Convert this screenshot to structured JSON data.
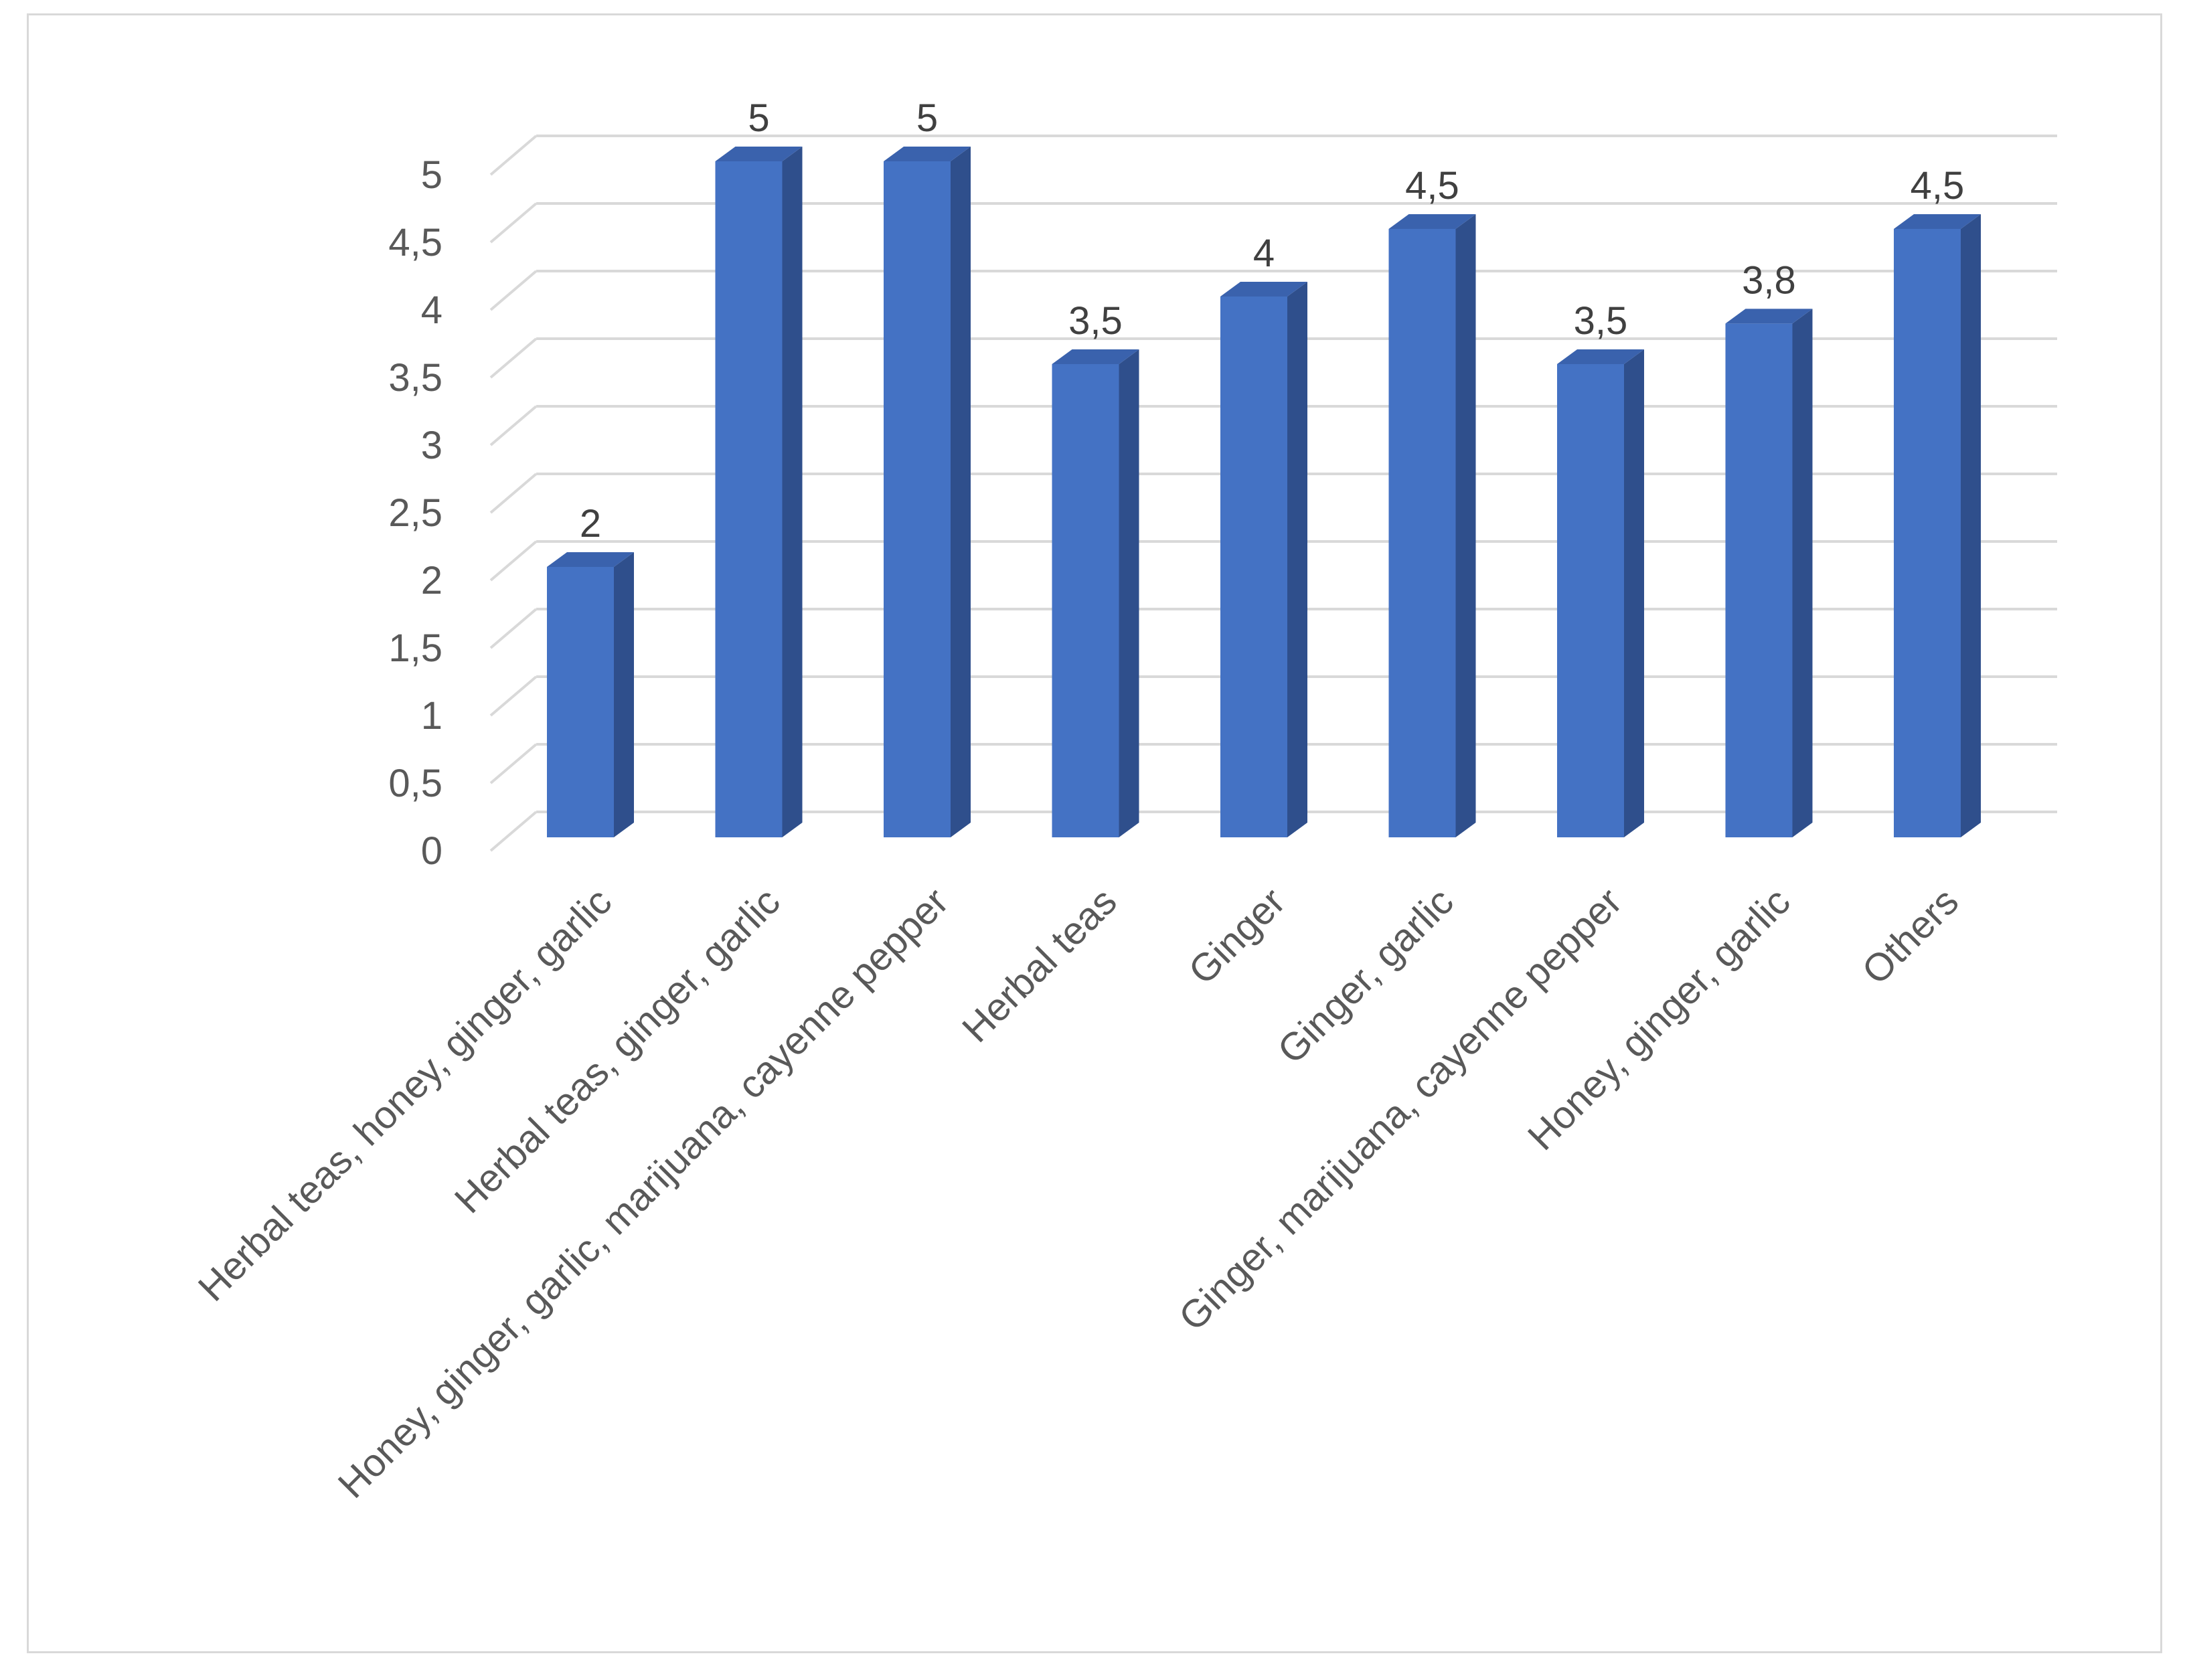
{
  "chart_data": {
    "type": "bar",
    "style": "3d-column",
    "categories": [
      "Herbal teas, honey, ginger, garlic",
      "Herbal teas, ginger, garlic",
      "Honey, ginger, garlic, marijuana, cayenne pepper",
      "Herbal teas",
      "Ginger",
      "Ginger, garlic",
      "Ginger, marijuana, cayenne pepper",
      "Honey, ginger, garlic",
      "Others"
    ],
    "values": [
      2,
      5,
      5,
      3.5,
      4,
      4.5,
      3.5,
      3.8,
      4.5
    ],
    "value_labels": [
      "2",
      "5",
      "5",
      "3,5",
      "4",
      "4,5",
      "3,5",
      "3,8",
      "4,5"
    ],
    "yticks": [
      "0",
      "0,5",
      "1",
      "1,5",
      "2",
      "2,5",
      "3",
      "3,5",
      "4",
      "4,5",
      "5"
    ],
    "ylim": [
      0,
      5
    ],
    "grid": true,
    "legend": "none",
    "colors": {
      "bar_front": "#4472c4",
      "bar_side": "#2f4f8c",
      "bar_top": "#3a62ad",
      "gridline": "#d9d9d9",
      "tick_text": "#595959"
    }
  }
}
